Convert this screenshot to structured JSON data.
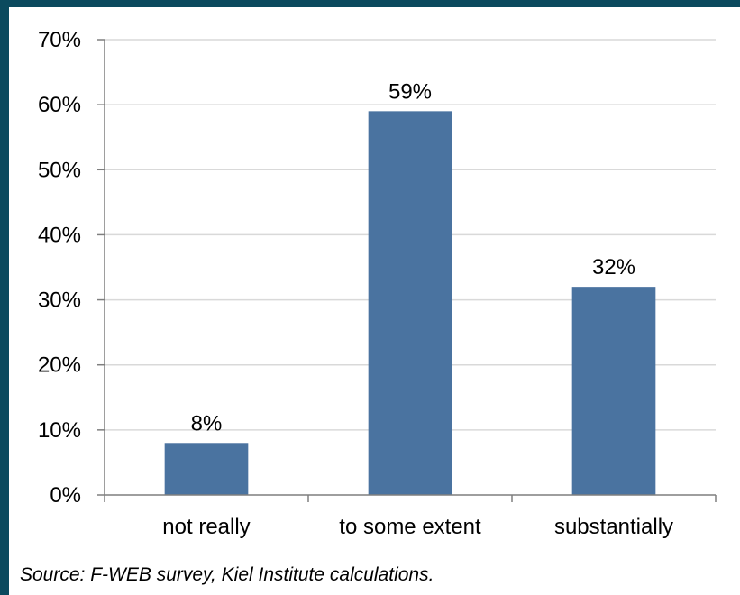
{
  "chart_data": {
    "type": "bar",
    "categories": [
      "not really",
      "to some extent",
      "substantially"
    ],
    "values": [
      8,
      59,
      32
    ],
    "data_labels": [
      "8%",
      "59%",
      "32%"
    ],
    "title": "",
    "xlabel": "",
    "ylabel": "",
    "ylim": [
      0,
      70
    ],
    "y_ticks": [
      0,
      10,
      20,
      30,
      40,
      50,
      60,
      70
    ],
    "y_tick_labels": [
      "0%",
      "10%",
      "20%",
      "30%",
      "40%",
      "50%",
      "60%",
      "70%"
    ],
    "grid": true,
    "legend": "none",
    "bar_color": "#4a73a0"
  },
  "source_note": "Source: F-WEB survey, Kiel Institute calculations."
}
